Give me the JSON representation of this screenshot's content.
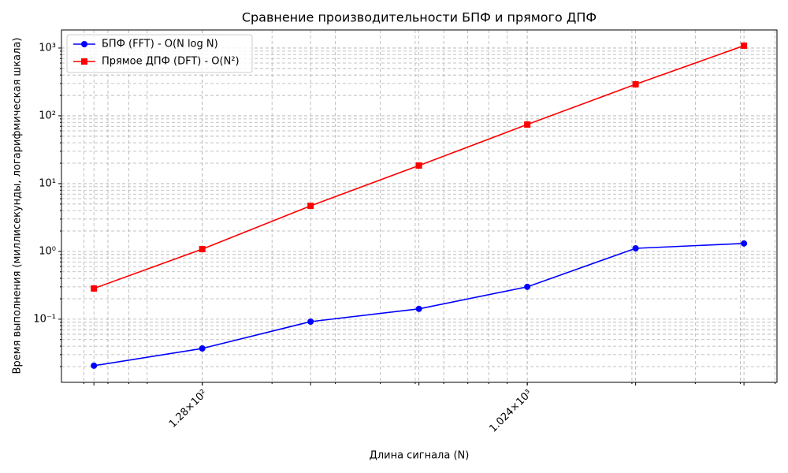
{
  "chart_data": {
    "type": "line",
    "title": "Сравнение производительности БПФ и прямого ДПФ",
    "xlabel": "Длина сигнала (N)",
    "ylabel": "Время выполнения (миллисекунды, логарифмическая шкала)",
    "x": [
      64,
      128,
      256,
      512,
      1024,
      2048,
      4096
    ],
    "series": [
      {
        "name": "БПФ (FFT) - O(N log N)",
        "color": "#0000ff",
        "marker": "circle",
        "values": [
          0.0206,
          0.037,
          0.092,
          0.142,
          0.3,
          1.11,
          1.31
        ]
      },
      {
        "name": "Прямое ДПФ (DFT) - O(N²)",
        "color": "#ff0000",
        "marker": "square",
        "values": [
          0.284,
          1.08,
          4.7,
          18.5,
          74.5,
          292,
          1084
        ]
      }
    ],
    "xscale": "log",
    "yscale": "log",
    "xlim": [
      52,
      5059
    ],
    "ylim": [
      0.0117,
      1849
    ],
    "xticks": [
      {
        "value": 128,
        "label": "1.28×10²"
      },
      {
        "value": 1024,
        "label": "1.024×10³"
      }
    ],
    "yticks": [
      {
        "value": 0.1,
        "label": "10⁻¹"
      },
      {
        "value": 1,
        "label": "10⁰"
      },
      {
        "value": 10,
        "label": "10¹"
      },
      {
        "value": 100,
        "label": "10²"
      },
      {
        "value": 1000,
        "label": "10³"
      }
    ],
    "grid": true,
    "legend": "upper left"
  }
}
